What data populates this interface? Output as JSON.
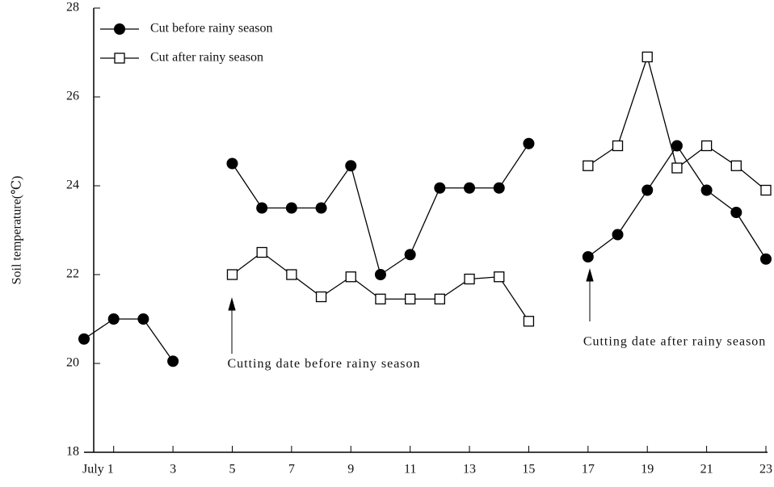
{
  "chart_data": {
    "type": "line",
    "y_label": "Soil temperature(℃)",
    "x": [
      0,
      1,
      2,
      3,
      4,
      5,
      6,
      7,
      8,
      9,
      10,
      11,
      12,
      13,
      14,
      15,
      16,
      17,
      18,
      19,
      20,
      21,
      22,
      23
    ],
    "series": [
      {
        "name": "Cut before rainy season",
        "color": "#000000",
        "marker": "filled-circle",
        "values": [
          20.55,
          21,
          21,
          20.05,
          null,
          24.5,
          23.5,
          23.5,
          23.5,
          24.45,
          22,
          22.45,
          23.95,
          23.95,
          23.95,
          24.95,
          null,
          22.4,
          22.9,
          23.9,
          24.9,
          23.9,
          23.4,
          22.35
        ]
      },
      {
        "name": "Cut after rainy season",
        "color": "#000000",
        "marker": "open-square",
        "values": [
          null,
          null,
          null,
          null,
          null,
          22,
          22.5,
          22,
          21.5,
          21.95,
          21.45,
          21.45,
          21.45,
          21.9,
          21.95,
          20.95,
          null,
          24.45,
          24.9,
          26.9,
          24.4,
          24.9,
          24.45,
          23.9
        ]
      }
    ],
    "xlim": [
      0,
      23
    ],
    "xticks": [
      {
        "value": 1,
        "label": "July 1"
      },
      3,
      5,
      7,
      9,
      11,
      13,
      15,
      17,
      19,
      21,
      23
    ],
    "ylim": [
      18,
      28
    ],
    "yticks": [
      18,
      20,
      22,
      24,
      26,
      28
    ],
    "annotations": [
      {
        "text": "Cutting date before rainy season",
        "x": 5,
        "y": 20.3
      },
      {
        "text": "Cutting date after rainy season",
        "x": 17,
        "y": 20.8
      }
    ],
    "legend": "upper left"
  }
}
